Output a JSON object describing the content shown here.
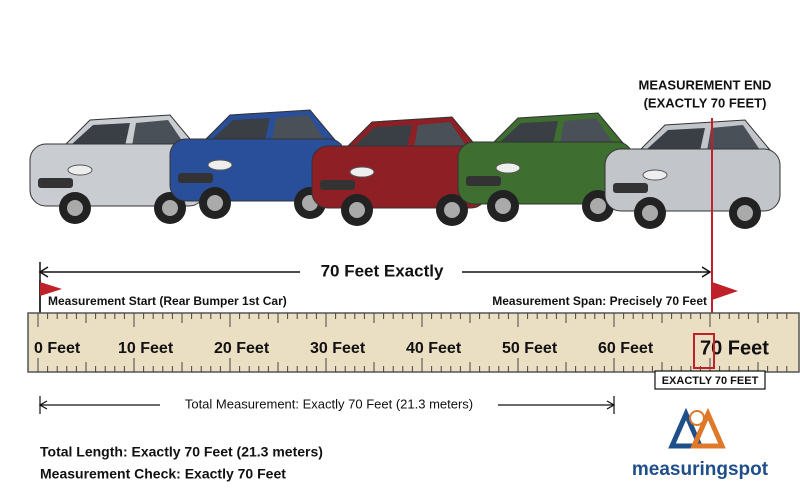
{
  "header": {
    "end_label": [
      "MEASUREMENT END",
      "(EXACTLY 70 FEET)"
    ],
    "span_title": "70 Feet Exactly"
  },
  "ruler": {
    "start_label": "Measurement Start (Rear Bumper 1st Car)",
    "span_label": "Measurement Span: Precisely 70 Feet",
    "marks": [
      "0 Feet",
      "10 Feet",
      "20 Feet",
      "30 Feet",
      "40 Feet",
      "50 Feet",
      "60 Feet",
      "70 Feet"
    ],
    "end_box": "EXACTLY 70 FEET",
    "total": "Total Measurement: Exactly 70 Feet (21.3 meters)"
  },
  "summary": [
    "Total Length: Exactly 70 Feet (21.3 meters)",
    "Measurement Check: Exactly 70 Feet"
  ],
  "logo": "measuringspot"
}
